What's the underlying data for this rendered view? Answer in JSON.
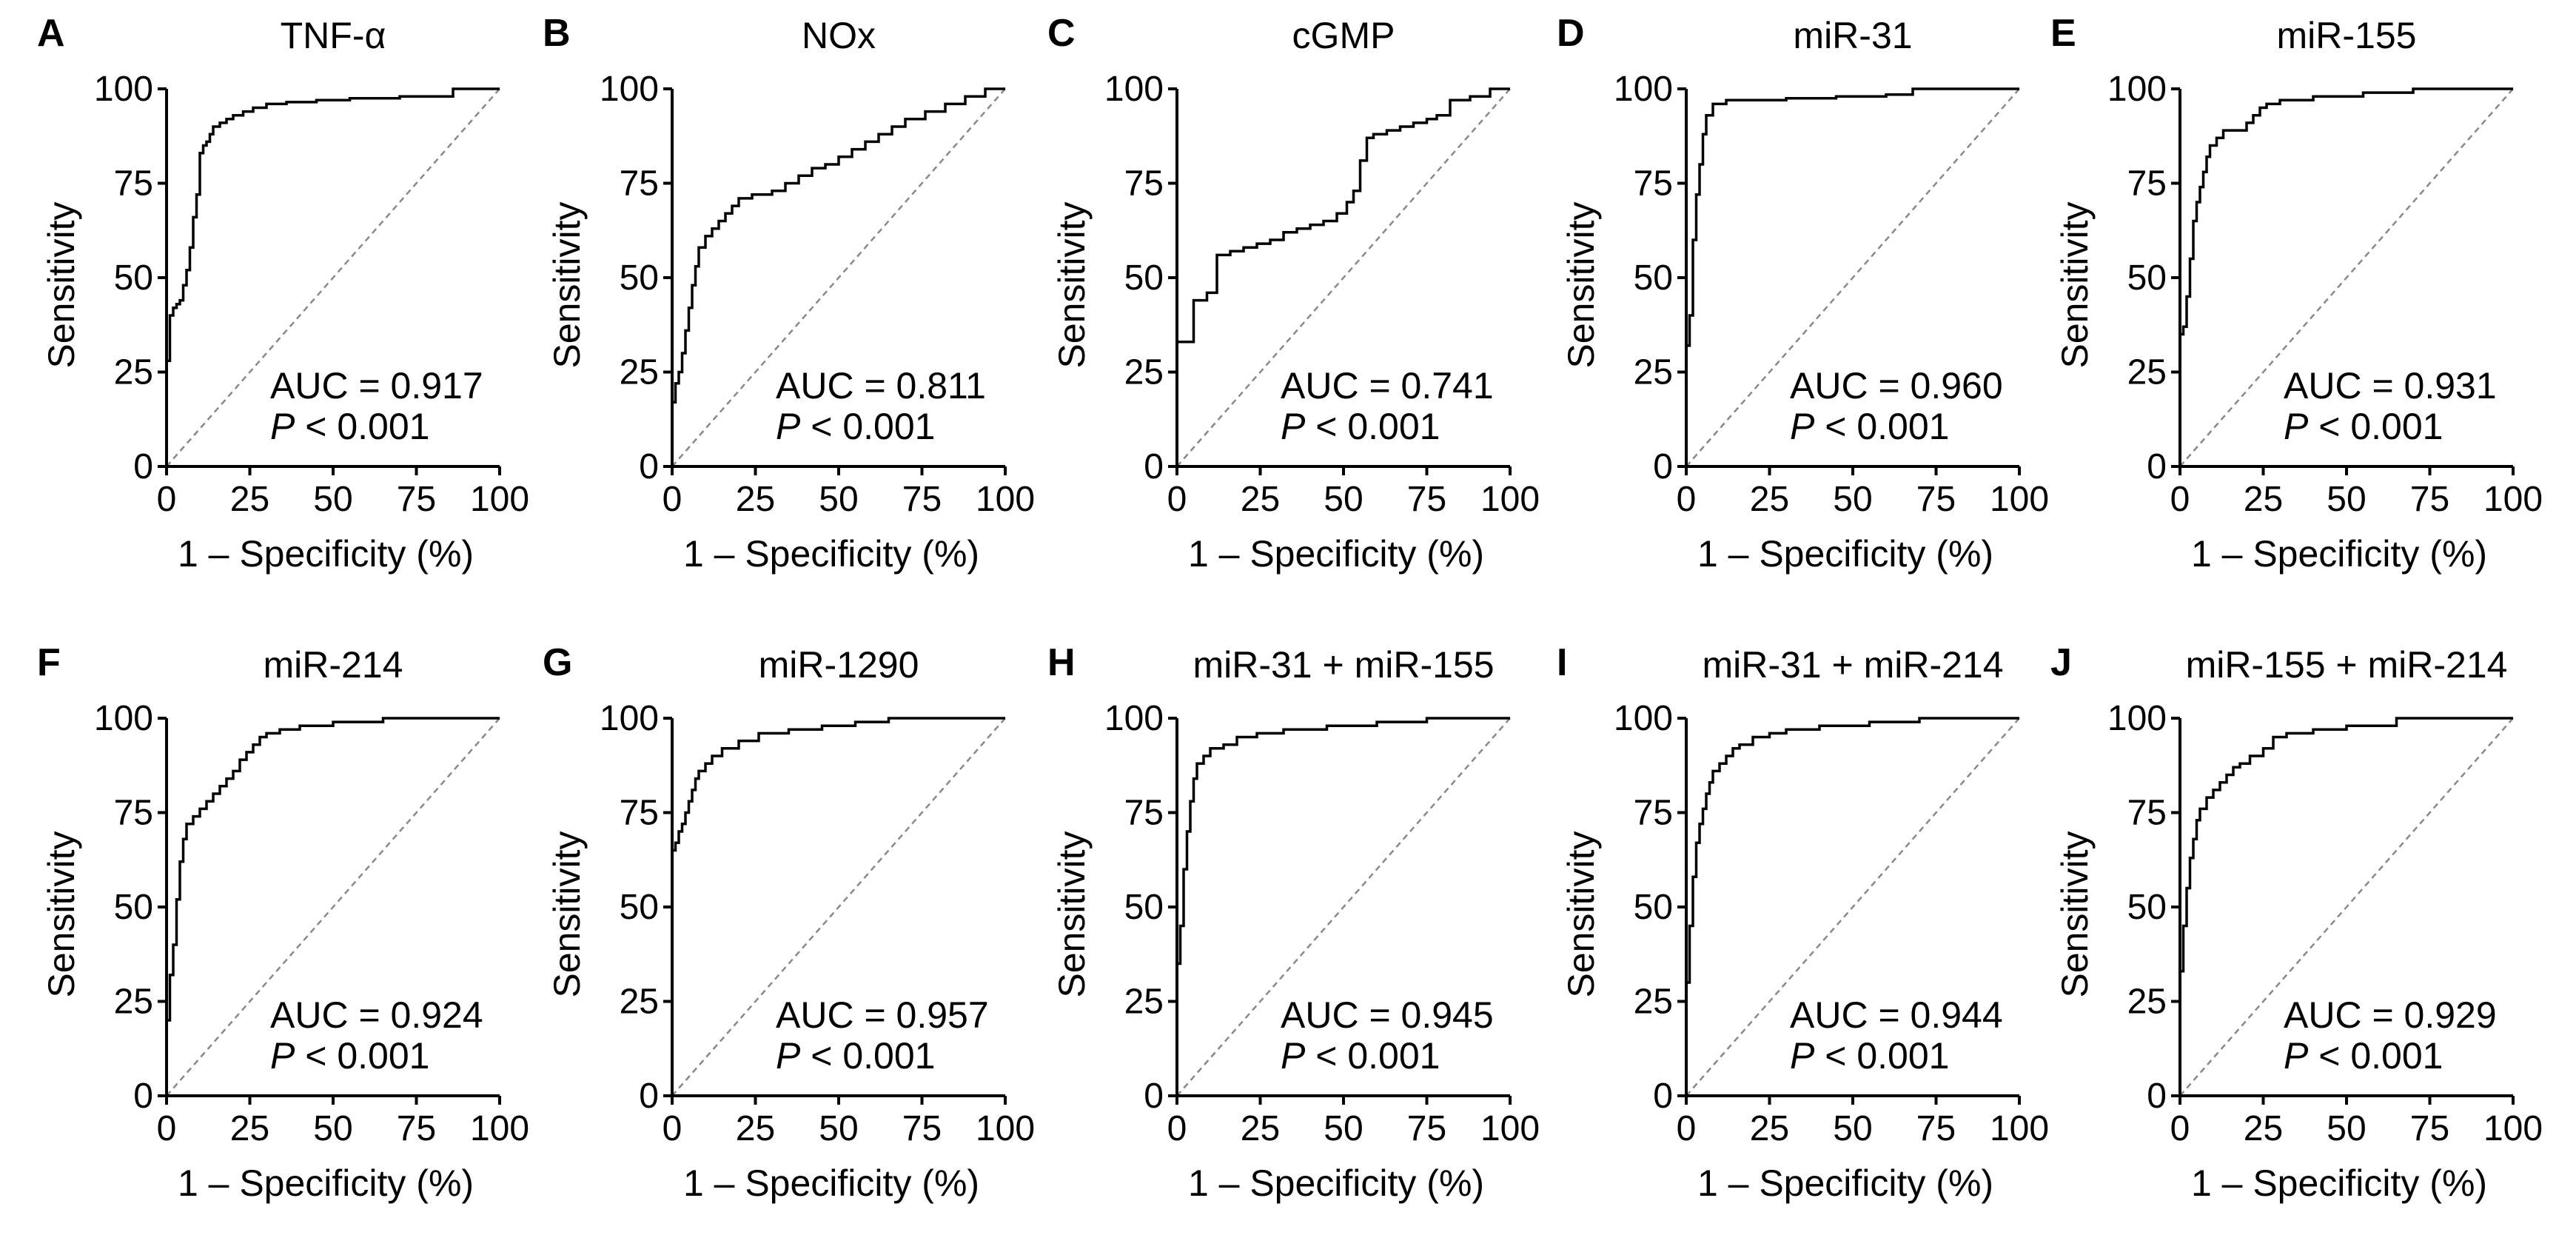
{
  "figure": {
    "x_axis_label": "1 – Specificity (%)",
    "y_axis_label": "Sensitivity",
    "tick_values": [
      0,
      25,
      50,
      75,
      100
    ],
    "auc_prefix": "AUC",
    "p_symbol": "P",
    "p_text": "< 0.001",
    "line_color": "#000000",
    "reference_line_color": "#888888"
  },
  "chart_data": [
    {
      "type": "line",
      "panel": "A",
      "title": "TNF-α",
      "xlabel": "1 – Specificity (%)",
      "ylabel": "Sensitivity",
      "xlim": [
        0,
        100
      ],
      "ylim": [
        0,
        100
      ],
      "auc": "0.917",
      "p": "< 0.001",
      "x": [
        0,
        0,
        1,
        1,
        2,
        2,
        3,
        3,
        4,
        4,
        5,
        5,
        6,
        6,
        7,
        7,
        8,
        8,
        9,
        9,
        10,
        10,
        11,
        11,
        12,
        12,
        13,
        13,
        14,
        14,
        16,
        16,
        18,
        18,
        20,
        20,
        23,
        23,
        26,
        26,
        30,
        30,
        36,
        36,
        45,
        45,
        55,
        55,
        70,
        70,
        86,
        86,
        100
      ],
      "y": [
        0,
        28,
        28,
        40,
        40,
        42,
        42,
        43,
        43,
        44,
        44,
        48,
        48,
        52,
        52,
        58,
        58,
        66,
        66,
        72,
        72,
        83,
        83,
        85,
        85,
        86,
        86,
        88,
        88,
        90,
        90,
        91,
        91,
        92,
        92,
        93,
        93,
        94,
        94,
        95,
        95,
        96,
        96,
        96.5,
        96.5,
        97,
        97,
        97.5,
        97.5,
        98,
        98,
        100,
        100
      ]
    },
    {
      "type": "line",
      "panel": "B",
      "title": "NOx",
      "xlabel": "1 – Specificity (%)",
      "ylabel": "Sensitivity",
      "xlim": [
        0,
        100
      ],
      "ylim": [
        0,
        100
      ],
      "auc": "0.811",
      "p": "< 0.001",
      "x": [
        0,
        0,
        1,
        1,
        2,
        2,
        3,
        3,
        4,
        4,
        5,
        5,
        6,
        6,
        7,
        7,
        8,
        8,
        10,
        10,
        12,
        12,
        14,
        14,
        16,
        16,
        18,
        18,
        20,
        20,
        24,
        24,
        30,
        30,
        34,
        34,
        38,
        38,
        42,
        42,
        46,
        46,
        50,
        50,
        54,
        54,
        58,
        58,
        62,
        62,
        66,
        66,
        70,
        70,
        76,
        76,
        82,
        82,
        88,
        88,
        94,
        94,
        100
      ],
      "y": [
        0,
        17,
        17,
        22,
        22,
        25,
        25,
        30,
        30,
        36,
        36,
        42,
        42,
        48,
        48,
        53,
        53,
        58,
        58,
        61,
        61,
        63,
        63,
        65,
        65,
        67,
        67,
        69,
        69,
        71,
        71,
        72,
        72,
        73,
        73,
        75,
        75,
        77,
        77,
        79,
        79,
        80,
        80,
        82,
        82,
        84,
        84,
        86,
        86,
        88,
        88,
        90,
        90,
        92,
        92,
        94,
        94,
        96,
        96,
        98,
        98,
        100,
        100
      ]
    },
    {
      "type": "line",
      "panel": "C",
      "title": "cGMP",
      "xlabel": "1 – Specificity (%)",
      "ylabel": "Sensitivity",
      "xlim": [
        0,
        100
      ],
      "ylim": [
        0,
        100
      ],
      "auc": "0.741",
      "p": "< 0.001",
      "x": [
        0,
        0,
        5,
        5,
        9,
        9,
        12,
        12,
        16,
        16,
        20,
        20,
        24,
        24,
        28,
        28,
        32,
        32,
        36,
        36,
        40,
        40,
        44,
        44,
        48,
        48,
        51,
        51,
        53,
        53,
        55,
        55,
        57,
        57,
        59,
        59,
        63,
        63,
        67,
        67,
        71,
        71,
        75,
        75,
        78,
        78,
        82,
        82,
        88,
        88,
        94,
        94,
        100
      ],
      "y": [
        0,
        33,
        33,
        44,
        44,
        46,
        46,
        56,
        56,
        57,
        57,
        58,
        58,
        59,
        59,
        60,
        60,
        62,
        62,
        63,
        63,
        64,
        64,
        65,
        65,
        67,
        67,
        70,
        70,
        73,
        73,
        81,
        81,
        87,
        87,
        88,
        88,
        89,
        89,
        90,
        90,
        91,
        91,
        92,
        92,
        93,
        93,
        97,
        97,
        98,
        98,
        100,
        100
      ]
    },
    {
      "type": "line",
      "panel": "D",
      "title": "miR-31",
      "xlabel": "1 – Specificity (%)",
      "ylabel": "Sensitivity",
      "xlim": [
        0,
        100
      ],
      "ylim": [
        0,
        100
      ],
      "auc": "0.960",
      "p": "< 0.001",
      "x": [
        0,
        0,
        1,
        1,
        2,
        2,
        3,
        3,
        4,
        4,
        5,
        5,
        6,
        6,
        8,
        8,
        12,
        12,
        30,
        30,
        45,
        45,
        60,
        60,
        68,
        68,
        100
      ],
      "y": [
        0,
        32,
        32,
        40,
        40,
        60,
        60,
        72,
        72,
        80,
        80,
        88,
        88,
        93,
        93,
        96,
        96,
        97,
        97,
        97.5,
        97.5,
        98,
        98,
        98.5,
        98.5,
        100,
        100
      ]
    },
    {
      "type": "line",
      "panel": "E",
      "title": "miR-155",
      "xlabel": "1 – Specificity (%)",
      "ylabel": "Sensitivity",
      "xlim": [
        0,
        100
      ],
      "ylim": [
        0,
        100
      ],
      "auc": "0.931",
      "p": "< 0.001",
      "x": [
        0,
        0,
        1,
        1,
        2,
        2,
        3,
        3,
        4,
        4,
        5,
        5,
        6,
        6,
        7,
        7,
        8,
        8,
        9,
        9,
        11,
        11,
        13,
        13,
        20,
        20,
        22,
        22,
        24,
        24,
        26,
        26,
        30,
        30,
        40,
        40,
        55,
        55,
        70,
        70,
        100
      ],
      "y": [
        0,
        35,
        35,
        37,
        37,
        45,
        45,
        55,
        55,
        65,
        65,
        70,
        70,
        74,
        74,
        78,
        78,
        82,
        82,
        85,
        85,
        87,
        87,
        89,
        89,
        91,
        91,
        93,
        93,
        95,
        95,
        96,
        96,
        97,
        97,
        98,
        98,
        99,
        99,
        100,
        100
      ]
    },
    {
      "type": "line",
      "panel": "F",
      "title": "miR-214",
      "xlabel": "1 – Specificity (%)",
      "ylabel": "Sensitivity",
      "xlim": [
        0,
        100
      ],
      "ylim": [
        0,
        100
      ],
      "auc": "0.924",
      "p": "< 0.001",
      "x": [
        0,
        0,
        1,
        1,
        2,
        2,
        3,
        3,
        4,
        4,
        5,
        5,
        6,
        6,
        8,
        8,
        10,
        10,
        12,
        12,
        14,
        14,
        16,
        16,
        18,
        18,
        20,
        20,
        22,
        22,
        24,
        24,
        26,
        26,
        28,
        28,
        30,
        30,
        34,
        34,
        40,
        40,
        50,
        50,
        65,
        65,
        100
      ],
      "y": [
        0,
        20,
        20,
        32,
        32,
        40,
        40,
        52,
        52,
        62,
        62,
        68,
        68,
        72,
        72,
        74,
        74,
        76,
        76,
        78,
        78,
        80,
        80,
        82,
        82,
        84,
        84,
        86,
        86,
        89,
        89,
        91,
        91,
        93,
        93,
        95,
        95,
        96,
        96,
        97,
        97,
        98,
        98,
        99,
        99,
        100,
        100
      ]
    },
    {
      "type": "line",
      "panel": "G",
      "title": "miR-1290",
      "xlabel": "1 – Specificity (%)",
      "ylabel": "Sensitivity",
      "xlim": [
        0,
        100
      ],
      "ylim": [
        0,
        100
      ],
      "auc": "0.957",
      "p": "< 0.001",
      "x": [
        0,
        0,
        1,
        1,
        2,
        2,
        3,
        3,
        4,
        4,
        5,
        5,
        6,
        6,
        7,
        7,
        8,
        8,
        10,
        10,
        12,
        12,
        15,
        15,
        20,
        20,
        26,
        26,
        35,
        35,
        45,
        45,
        55,
        55,
        65,
        65,
        100
      ],
      "y": [
        0,
        65,
        65,
        67,
        67,
        70,
        70,
        72,
        72,
        75,
        75,
        78,
        78,
        81,
        81,
        84,
        84,
        86,
        86,
        88,
        88,
        90,
        90,
        92,
        92,
        94,
        94,
        96,
        96,
        97,
        97,
        98,
        98,
        99,
        99,
        100,
        100
      ]
    },
    {
      "type": "line",
      "panel": "H",
      "title": "miR-31 + miR-155",
      "xlabel": "1 – Specificity (%)",
      "ylabel": "Sensitivity",
      "xlim": [
        0,
        100
      ],
      "ylim": [
        0,
        100
      ],
      "auc": "0.945",
      "p": "< 0.001",
      "x": [
        0,
        0,
        1,
        1,
        2,
        2,
        3,
        3,
        4,
        4,
        5,
        5,
        6,
        6,
        8,
        8,
        10,
        10,
        14,
        14,
        18,
        18,
        24,
        24,
        32,
        32,
        45,
        45,
        60,
        60,
        75,
        75,
        100
      ],
      "y": [
        0,
        35,
        35,
        45,
        45,
        60,
        60,
        70,
        70,
        78,
        78,
        84,
        84,
        88,
        88,
        90,
        90,
        92,
        92,
        93,
        93,
        95,
        95,
        96,
        96,
        97,
        97,
        98,
        98,
        99,
        99,
        100,
        100
      ]
    },
    {
      "type": "line",
      "panel": "I",
      "title": "miR-31 + miR-214",
      "xlabel": "1 – Specificity (%)",
      "ylabel": "Sensitivity",
      "xlim": [
        0,
        100
      ],
      "ylim": [
        0,
        100
      ],
      "auc": "0.944",
      "p": "< 0.001",
      "x": [
        0,
        0,
        1,
        1,
        2,
        2,
        3,
        3,
        4,
        4,
        5,
        5,
        6,
        6,
        7,
        7,
        8,
        8,
        10,
        10,
        12,
        12,
        14,
        14,
        16,
        16,
        20,
        20,
        25,
        25,
        30,
        30,
        40,
        40,
        55,
        55,
        70,
        70,
        100
      ],
      "y": [
        0,
        30,
        30,
        45,
        45,
        58,
        58,
        67,
        67,
        72,
        72,
        76,
        76,
        80,
        80,
        83,
        83,
        86,
        86,
        88,
        88,
        90,
        90,
        92,
        92,
        93,
        93,
        95,
        95,
        96,
        96,
        97,
        97,
        98,
        98,
        99,
        99,
        100,
        100
      ]
    },
    {
      "type": "line",
      "panel": "J",
      "title": "miR-155 + miR-214",
      "xlabel": "1 – Specificity (%)",
      "ylabel": "Sensitivity",
      "xlim": [
        0,
        100
      ],
      "ylim": [
        0,
        100
      ],
      "auc": "0.929",
      "p": "< 0.001",
      "x": [
        0,
        0,
        1,
        1,
        2,
        2,
        3,
        3,
        4,
        4,
        5,
        5,
        6,
        6,
        8,
        8,
        10,
        10,
        12,
        12,
        14,
        14,
        16,
        16,
        18,
        18,
        21,
        21,
        25,
        25,
        28,
        28,
        32,
        32,
        40,
        40,
        50,
        50,
        65,
        65,
        100
      ],
      "y": [
        0,
        33,
        33,
        45,
        45,
        55,
        55,
        63,
        63,
        68,
        68,
        73,
        73,
        76,
        76,
        79,
        79,
        81,
        81,
        83,
        83,
        85,
        85,
        87,
        87,
        88,
        88,
        90,
        90,
        92,
        92,
        95,
        95,
        96,
        96,
        97,
        97,
        98,
        98,
        100,
        100
      ]
    }
  ]
}
